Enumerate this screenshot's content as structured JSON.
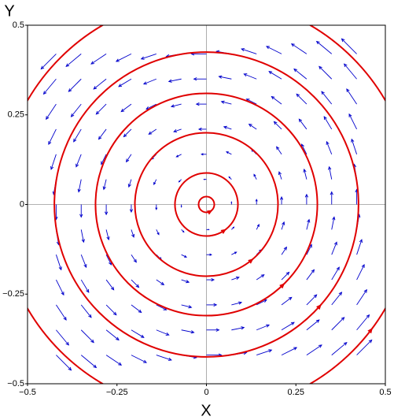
{
  "chart_data": {
    "type": "quiver",
    "xlabel": "X",
    "ylabel": "Y",
    "xlim": [
      -0.5,
      0.5
    ],
    "ylim": [
      -0.5,
      0.5
    ],
    "xticks": [
      {
        "value": -0.5,
        "label": "−0.5"
      },
      {
        "value": -0.25,
        "label": "−0.25"
      },
      0,
      0.25,
      0.5
    ],
    "yticks": [
      {
        "value": -0.5,
        "label": "−0.5"
      },
      {
        "value": -0.25,
        "label": "−0.25"
      },
      0,
      0.25,
      0.5
    ],
    "zero_lines": true,
    "color": "#0000cc",
    "x": [
      -0.42,
      -0.35,
      -0.28,
      -0.21,
      -0.14,
      -0.07,
      0,
      0.07,
      0.14,
      0.21,
      0.28,
      0.35,
      0.42
    ],
    "y": [
      -0.42,
      -0.35,
      -0.28,
      -0.21,
      -0.14,
      -0.07,
      0,
      0.07,
      0.14,
      0.21,
      0.28,
      0.35,
      0.42
    ],
    "u": [
      [
        0.042,
        0.042,
        0.042,
        0.042,
        0.042,
        0.042,
        0.042,
        0.042,
        0.042,
        0.042,
        0.042,
        0.042,
        0.042
      ],
      [
        0.035,
        0.035,
        0.035,
        0.035,
        0.035,
        0.035,
        0.035,
        0.035,
        0.035,
        0.035,
        0.035,
        0.035,
        0.035
      ],
      [
        0.028,
        0.028,
        0.028,
        0.028,
        0.028,
        0.028,
        0.028,
        0.028,
        0.028,
        0.028,
        0.028,
        0.028,
        0.028
      ],
      [
        0.021,
        0.021,
        0.021,
        0.021,
        0.021,
        0.021,
        0.021,
        0.021,
        0.021,
        0.021,
        0.021,
        0.021,
        0.021
      ],
      [
        0.014,
        0.014,
        0.014,
        0.014,
        0.014,
        0.014,
        0.014,
        0.014,
        0.014,
        0.014,
        0.014,
        0.014,
        0.014
      ],
      [
        0.007,
        0.007,
        0.007,
        0.007,
        0.007,
        0.007,
        0.007,
        0.007,
        0.007,
        0.007,
        0.007,
        0.007,
        0.007
      ],
      [
        0,
        0,
        0,
        0,
        0,
        0,
        0,
        0,
        0,
        0,
        0,
        0,
        0
      ],
      [
        -0.007,
        -0.007,
        -0.007,
        -0.007,
        -0.007,
        -0.007,
        -0.007,
        -0.007,
        -0.007,
        -0.007,
        -0.007,
        -0.007,
        -0.007
      ],
      [
        -0.014,
        -0.014,
        -0.014,
        -0.014,
        -0.014,
        -0.014,
        -0.014,
        -0.014,
        -0.014,
        -0.014,
        -0.014,
        -0.014,
        -0.014
      ],
      [
        -0.021,
        -0.021,
        -0.021,
        -0.021,
        -0.021,
        -0.021,
        -0.021,
        -0.021,
        -0.021,
        -0.021,
        -0.021,
        -0.021,
        -0.021
      ],
      [
        -0.028,
        -0.028,
        -0.028,
        -0.028,
        -0.028,
        -0.028,
        -0.028,
        -0.028,
        -0.028,
        -0.028,
        -0.028,
        -0.028,
        -0.028
      ],
      [
        -0.035,
        -0.035,
        -0.035,
        -0.035,
        -0.035,
        -0.035,
        -0.035,
        -0.035,
        -0.035,
        -0.035,
        -0.035,
        -0.035,
        -0.035
      ],
      [
        -0.042,
        -0.042,
        -0.042,
        -0.042,
        -0.042,
        -0.042,
        -0.042,
        -0.042,
        -0.042,
        -0.042,
        -0.042,
        -0.042,
        -0.042
      ]
    ],
    "v": [
      [
        -0.042,
        -0.035,
        -0.028,
        -0.021,
        -0.014,
        -0.007,
        0,
        0.007,
        0.014,
        0.021,
        0.028,
        0.035,
        0.042
      ],
      [
        -0.042,
        -0.035,
        -0.028,
        -0.021,
        -0.014,
        -0.007,
        0,
        0.007,
        0.014,
        0.021,
        0.028,
        0.035,
        0.042
      ],
      [
        -0.042,
        -0.035,
        -0.028,
        -0.021,
        -0.014,
        -0.007,
        0,
        0.007,
        0.014,
        0.021,
        0.028,
        0.035,
        0.042
      ],
      [
        -0.042,
        -0.035,
        -0.028,
        -0.021,
        -0.014,
        -0.007,
        0,
        0.007,
        0.014,
        0.021,
        0.028,
        0.035,
        0.042
      ],
      [
        -0.042,
        -0.035,
        -0.028,
        -0.021,
        -0.014,
        -0.007,
        0,
        0.007,
        0.014,
        0.021,
        0.028,
        0.035,
        0.042
      ],
      [
        -0.042,
        -0.035,
        -0.028,
        -0.021,
        -0.014,
        -0.007,
        0,
        0.007,
        0.014,
        0.021,
        0.028,
        0.035,
        0.042
      ],
      [
        -0.042,
        -0.035,
        -0.028,
        -0.021,
        -0.014,
        -0.007,
        0,
        0.007,
        0.014,
        0.021,
        0.028,
        0.035,
        0.042
      ],
      [
        -0.042,
        -0.035,
        -0.028,
        -0.021,
        -0.014,
        -0.007,
        0,
        0.007,
        0.014,
        0.021,
        0.028,
        0.035,
        0.042
      ],
      [
        -0.042,
        -0.035,
        -0.028,
        -0.021,
        -0.014,
        -0.007,
        0,
        0.007,
        0.014,
        0.021,
        0.028,
        0.035,
        0.042
      ],
      [
        -0.042,
        -0.035,
        -0.028,
        -0.021,
        -0.014,
        -0.007,
        0,
        0.007,
        0.014,
        0.021,
        0.028,
        0.035,
        0.042
      ],
      [
        -0.042,
        -0.035,
        -0.028,
        -0.021,
        -0.014,
        -0.007,
        0,
        0.007,
        0.014,
        0.021,
        0.028,
        0.035,
        0.042
      ],
      [
        -0.042,
        -0.035,
        -0.028,
        -0.021,
        -0.014,
        -0.007,
        0,
        0.007,
        0.014,
        0.021,
        0.028,
        0.035,
        0.042
      ],
      [
        -0.042,
        -0.035,
        -0.028,
        -0.021,
        -0.014,
        -0.007,
        0,
        0.007,
        0.014,
        0.021,
        0.028,
        0.035,
        0.042
      ]
    ],
    "streamlines": {
      "color": "#e00000",
      "radii": [
        0.022,
        0.088,
        0.2,
        0.31,
        0.425,
        0.578
      ]
    }
  }
}
